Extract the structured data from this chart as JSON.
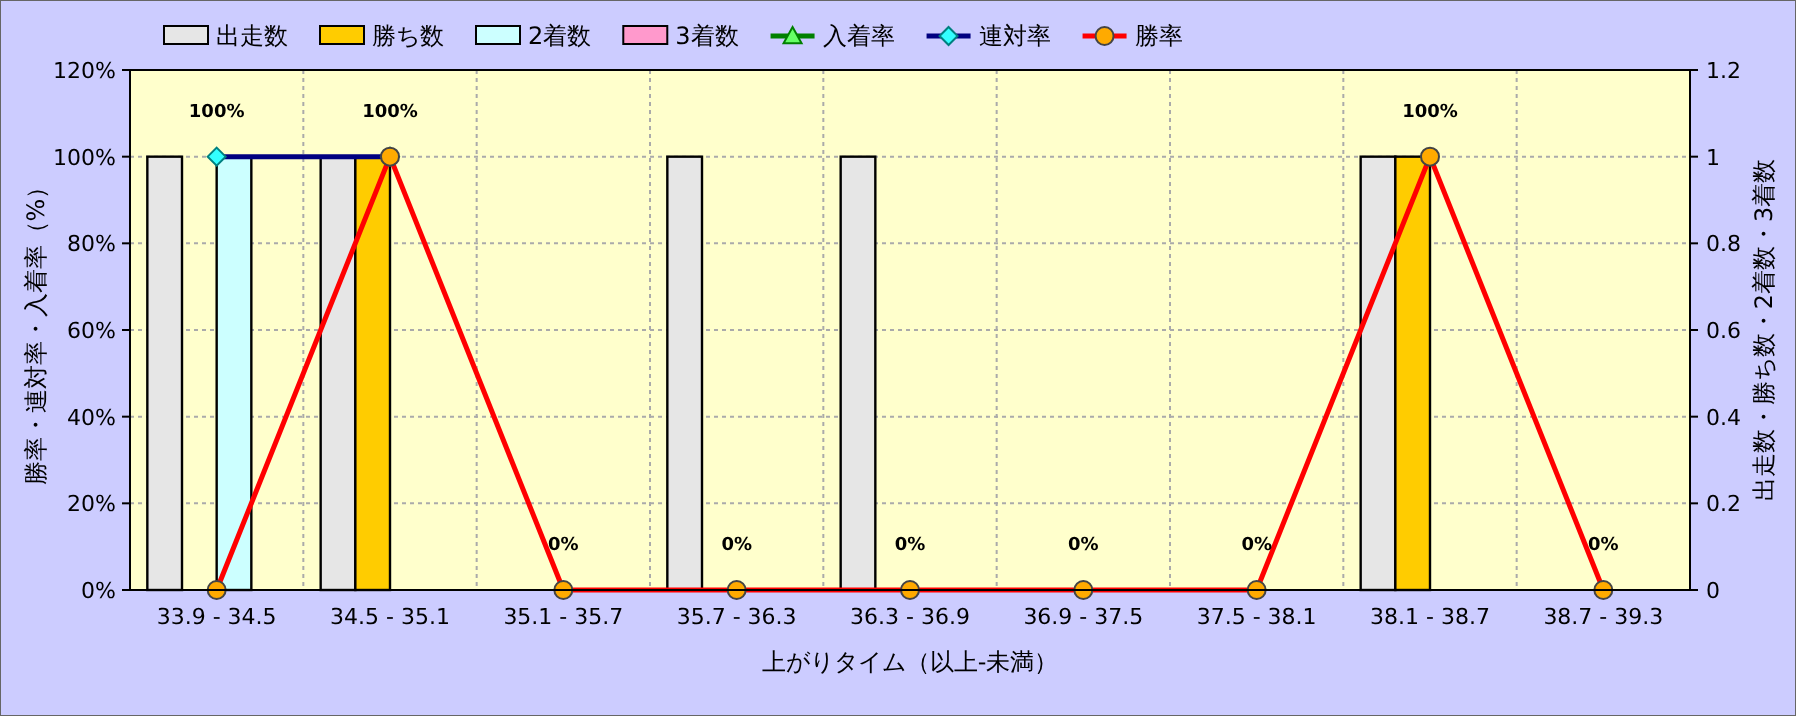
{
  "chart_data": {
    "type": "bar",
    "xlabel": "上がりタイム（以上-未満）",
    "ylabel": "勝率・連対率・入着率（%）",
    "y2label": "出走数・勝ち数・2着数・3着数",
    "categories": [
      "33.9 - 34.5",
      "34.5 - 35.1",
      "35.1 - 35.7",
      "35.7 - 36.3",
      "36.3 - 36.9",
      "36.9 - 37.5",
      "37.5 - 38.1",
      "38.1 - 38.7",
      "38.7 - 39.3"
    ],
    "series": [
      {
        "name": "出走数",
        "axis": "y2",
        "color": "#e6e6e6",
        "values": [
          1,
          1,
          0,
          1,
          1,
          0,
          0,
          1,
          0
        ]
      },
      {
        "name": "勝ち数",
        "axis": "y2",
        "color": "#ffcc00",
        "values": [
          0,
          1,
          0,
          0,
          0,
          0,
          0,
          1,
          0
        ]
      },
      {
        "name": "2着数",
        "axis": "y2",
        "color": "#ccffff",
        "values": [
          1,
          0,
          0,
          0,
          0,
          0,
          0,
          0,
          0
        ]
      },
      {
        "name": "3着数",
        "axis": "y2",
        "color": "#ff99cc",
        "values": [
          0,
          0,
          0,
          0,
          0,
          0,
          0,
          0,
          0
        ]
      },
      {
        "name": "入着率",
        "type": "line",
        "axis": "y",
        "color": "#008000",
        "marker": "triangle",
        "values": [
          null,
          null,
          null,
          null,
          null,
          null,
          null,
          null,
          null
        ]
      },
      {
        "name": "連対率",
        "type": "line",
        "axis": "y",
        "color": "#000080",
        "marker": "diamond",
        "values": [
          100,
          100,
          null,
          null,
          null,
          null,
          null,
          null,
          null
        ]
      },
      {
        "name": "勝率",
        "type": "line",
        "axis": "y",
        "color": "#ff0000",
        "marker": "circle",
        "values": [
          0,
          100,
          0,
          0,
          0,
          0,
          0,
          100,
          0
        ]
      }
    ],
    "ylim": [
      0,
      120
    ],
    "yticks": [
      {
        "value": 0,
        "label": "0%"
      },
      {
        "value": 20,
        "label": "20%"
      },
      {
        "value": 40,
        "label": "40%"
      },
      {
        "value": 60,
        "label": "60%"
      },
      {
        "value": 80,
        "label": "80%"
      },
      {
        "value": 100,
        "label": "100%"
      },
      {
        "value": 120,
        "label": "120%"
      }
    ],
    "y2lim": [
      0,
      1.2
    ],
    "y2ticks": [
      0,
      0.2,
      0.4,
      0.6,
      0.8,
      1,
      1.2
    ],
    "grid": true,
    "legend": "top",
    "annotations": [
      {
        "text": "100%",
        "x": "33.9 - 34.5",
        "y": 100
      },
      {
        "text": "100%",
        "x": "34.5 - 35.1",
        "y": 100
      },
      {
        "text": "0%",
        "x": "35.1 - 35.7",
        "y": 0
      },
      {
        "text": "0%",
        "x": "35.7 - 36.3",
        "y": 0
      },
      {
        "text": "0%",
        "x": "36.3 - 36.9",
        "y": 0
      },
      {
        "text": "0%",
        "x": "36.9 - 37.5",
        "y": 0
      },
      {
        "text": "0%",
        "x": "37.5 - 38.1",
        "y": 0
      },
      {
        "text": "100%",
        "x": "38.1 - 38.7",
        "y": 100
      },
      {
        "text": "0%",
        "x": "38.7 - 39.3",
        "y": 0
      }
    ]
  }
}
